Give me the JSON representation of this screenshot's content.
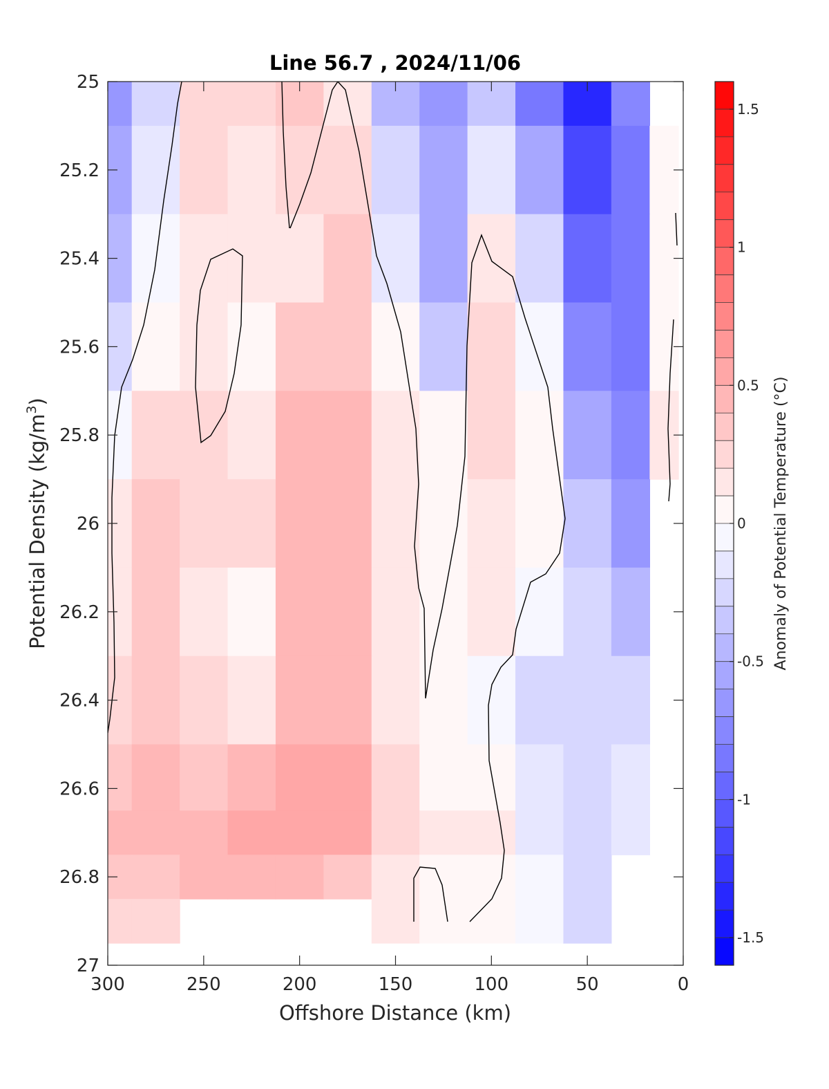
{
  "chart_data": {
    "type": "heatmap",
    "title": "Line 56.7 , 2024/11/06",
    "xlabel": "Offshore Distance (km)",
    "ylabel_main": "Potential Density (kg/m",
    "ylabel_sup": "3",
    "ylabel_close": ")",
    "xlim": [
      300,
      0
    ],
    "ylim": [
      25,
      27
    ],
    "x_ticks": [
      300,
      250,
      200,
      150,
      100,
      50,
      0
    ],
    "x_tick_labels": [
      "300",
      "250",
      "200",
      "150",
      "100",
      "50",
      "0"
    ],
    "y_ticks": [
      25,
      25.2,
      25.4,
      25.6,
      25.8,
      26,
      26.2,
      26.4,
      26.6,
      26.8,
      27
    ],
    "y_tick_labels": [
      "25",
      "25.2",
      "25.4",
      "25.6",
      "25.8",
      "26",
      "26.2",
      "26.4",
      "26.6",
      "26.8",
      "27"
    ],
    "colorbar": {
      "label": "Anomaly of Potential Temperature (°C)",
      "range": [
        -1.6,
        1.6
      ],
      "step": 0.1,
      "ticks": [
        1.5,
        1,
        0.5,
        0,
        -0.5,
        -1,
        -1.5
      ],
      "tick_labels": [
        "1.5",
        "1",
        "0.5",
        "0",
        "-0.5",
        "-1",
        "-1.5"
      ]
    },
    "colors": {
      "positive": "#ff0000",
      "negative": "#0000ff",
      "zero": "#ffffff",
      "contour": "#000000"
    },
    "x": [
      300,
      275,
      250,
      225,
      200,
      175,
      150,
      125,
      100,
      75,
      50,
      25,
      10
    ],
    "y": [
      25.0,
      25.2,
      25.4,
      25.6,
      25.8,
      26.0,
      26.2,
      26.4,
      26.6,
      26.7,
      26.8,
      26.9
    ],
    "z": [
      [
        -0.7,
        -0.3,
        0.2,
        0.2,
        0.3,
        0.1,
        -0.5,
        -0.7,
        -0.4,
        -0.9,
        -1.4,
        -0.8,
        null
      ],
      [
        -0.6,
        -0.2,
        0.2,
        0.1,
        0.2,
        0.2,
        -0.3,
        -0.6,
        -0.2,
        -0.6,
        -1.2,
        -0.9,
        0.0
      ],
      [
        -0.5,
        -0.1,
        0.1,
        0.1,
        0.1,
        0.3,
        -0.2,
        -0.6,
        0.1,
        -0.3,
        -1.0,
        -0.9,
        0.0
      ],
      [
        -0.3,
        0.0,
        0.1,
        0.0,
        0.3,
        0.3,
        0.0,
        -0.4,
        0.2,
        -0.1,
        -0.8,
        -0.9,
        0.0
      ],
      [
        -0.1,
        0.2,
        0.2,
        0.1,
        0.4,
        0.4,
        0.1,
        0.0,
        0.2,
        0.0,
        -0.6,
        -0.8,
        0.1
      ],
      [
        0.1,
        0.3,
        0.2,
        0.2,
        0.4,
        0.4,
        0.1,
        0.0,
        0.1,
        0.0,
        -0.4,
        -0.7,
        null
      ],
      [
        0.1,
        0.3,
        0.1,
        0.0,
        0.4,
        0.4,
        0.1,
        0.0,
        0.1,
        -0.1,
        -0.3,
        -0.5,
        null
      ],
      [
        0.2,
        0.3,
        0.2,
        0.1,
        0.4,
        0.4,
        0.1,
        0.0,
        -0.1,
        -0.3,
        -0.3,
        -0.3,
        null
      ],
      [
        0.3,
        0.4,
        0.3,
        0.4,
        0.5,
        0.5,
        0.2,
        0.0,
        0.0,
        -0.2,
        -0.3,
        -0.2,
        null
      ],
      [
        0.4,
        0.4,
        0.4,
        0.5,
        0.5,
        0.5,
        0.2,
        0.1,
        0.1,
        -0.2,
        -0.3,
        -0.2,
        null
      ],
      [
        0.3,
        0.3,
        0.4,
        0.4,
        0.4,
        0.3,
        0.1,
        0.0,
        0.0,
        -0.1,
        -0.3,
        null,
        null
      ],
      [
        0.2,
        0.2,
        null,
        null,
        null,
        null,
        0.1,
        0.0,
        0.0,
        -0.1,
        -0.3,
        null,
        null
      ]
    ]
  }
}
